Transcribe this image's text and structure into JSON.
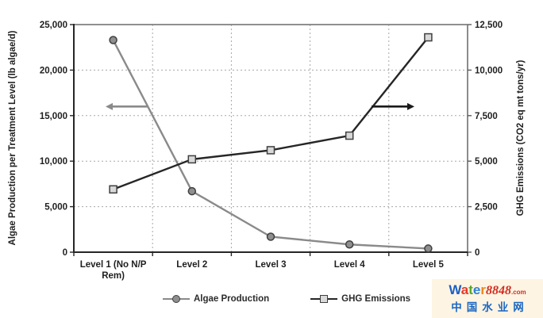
{
  "chart_data": {
    "type": "line",
    "title": "",
    "categories": [
      "Level 1 (No N/P Rem)",
      "Level 2",
      "Level 3",
      "Level 4",
      "Level 5"
    ],
    "category_label_lines": [
      [
        "Level 1 (No N/P",
        "Rem)"
      ],
      [
        "Level 2"
      ],
      [
        "Level 3"
      ],
      [
        "Level 4"
      ],
      [
        "Level 5"
      ]
    ],
    "series": [
      {
        "name": "Algae Production",
        "axis": "left",
        "values": [
          23300,
          6700,
          1700,
          850,
          400
        ],
        "line_color": "#8a8a8a",
        "marker": "circle",
        "marker_fill": "#8f8f8f",
        "marker_stroke": "#3f3f3f"
      },
      {
        "name": "GHG Emissions",
        "axis": "right",
        "values": [
          3450,
          5100,
          5600,
          6400,
          11800
        ],
        "line_color": "#262626",
        "marker": "square",
        "marker_fill": "#d9d9d9",
        "marker_stroke": "#3f3f3f"
      }
    ],
    "left_axis": {
      "label": "Algae Production per Treatment Level (lb algae/d)",
      "min": 0,
      "max": 25000,
      "tick_values": [
        0,
        5000,
        10000,
        15000,
        20000,
        25000
      ],
      "tick_labels": [
        "0",
        "5,000",
        "10,000",
        "15,000",
        "20,000",
        "25,000"
      ]
    },
    "right_axis": {
      "label": "GHG Emissions (CO2 eq mt tons/yr)",
      "min": 0,
      "max": 12500,
      "tick_values": [
        0,
        2500,
        5000,
        7500,
        10000,
        12500
      ],
      "tick_labels": [
        "0",
        "2,500",
        "5,000",
        "7,500",
        "10,000",
        "12,500"
      ]
    },
    "legend": {
      "position": "bottom",
      "entries": [
        "Algae Production",
        "GHG Emissions"
      ]
    },
    "grid": {
      "horizontal": "dotted",
      "vertical": "dotted-at-category-boundaries"
    },
    "annotations": [
      {
        "name": "left-axis-arrow",
        "direction": "left",
        "color": "#8a8a8a",
        "attached_series": "Algae Production",
        "at_left_value": 16000
      },
      {
        "name": "right-axis-arrow",
        "direction": "right",
        "color": "#1a1a1a",
        "attached_series": "GHG Emissions",
        "at_right_value": 8000
      }
    ]
  },
  "watermark": {
    "brand_letters": [
      {
        "ch": "W",
        "color": "#1d5fc2"
      },
      {
        "ch": "a",
        "color": "#e4392b"
      },
      {
        "ch": "t",
        "color": "#5aa42b"
      },
      {
        "ch": "e",
        "color": "#2f80d6"
      },
      {
        "ch": "r",
        "color": "#f08519"
      }
    ],
    "brand_number": "8848",
    "brand_tld": ".com",
    "subtitle": "中国水业网",
    "bg_color": "#fdf4e3"
  }
}
